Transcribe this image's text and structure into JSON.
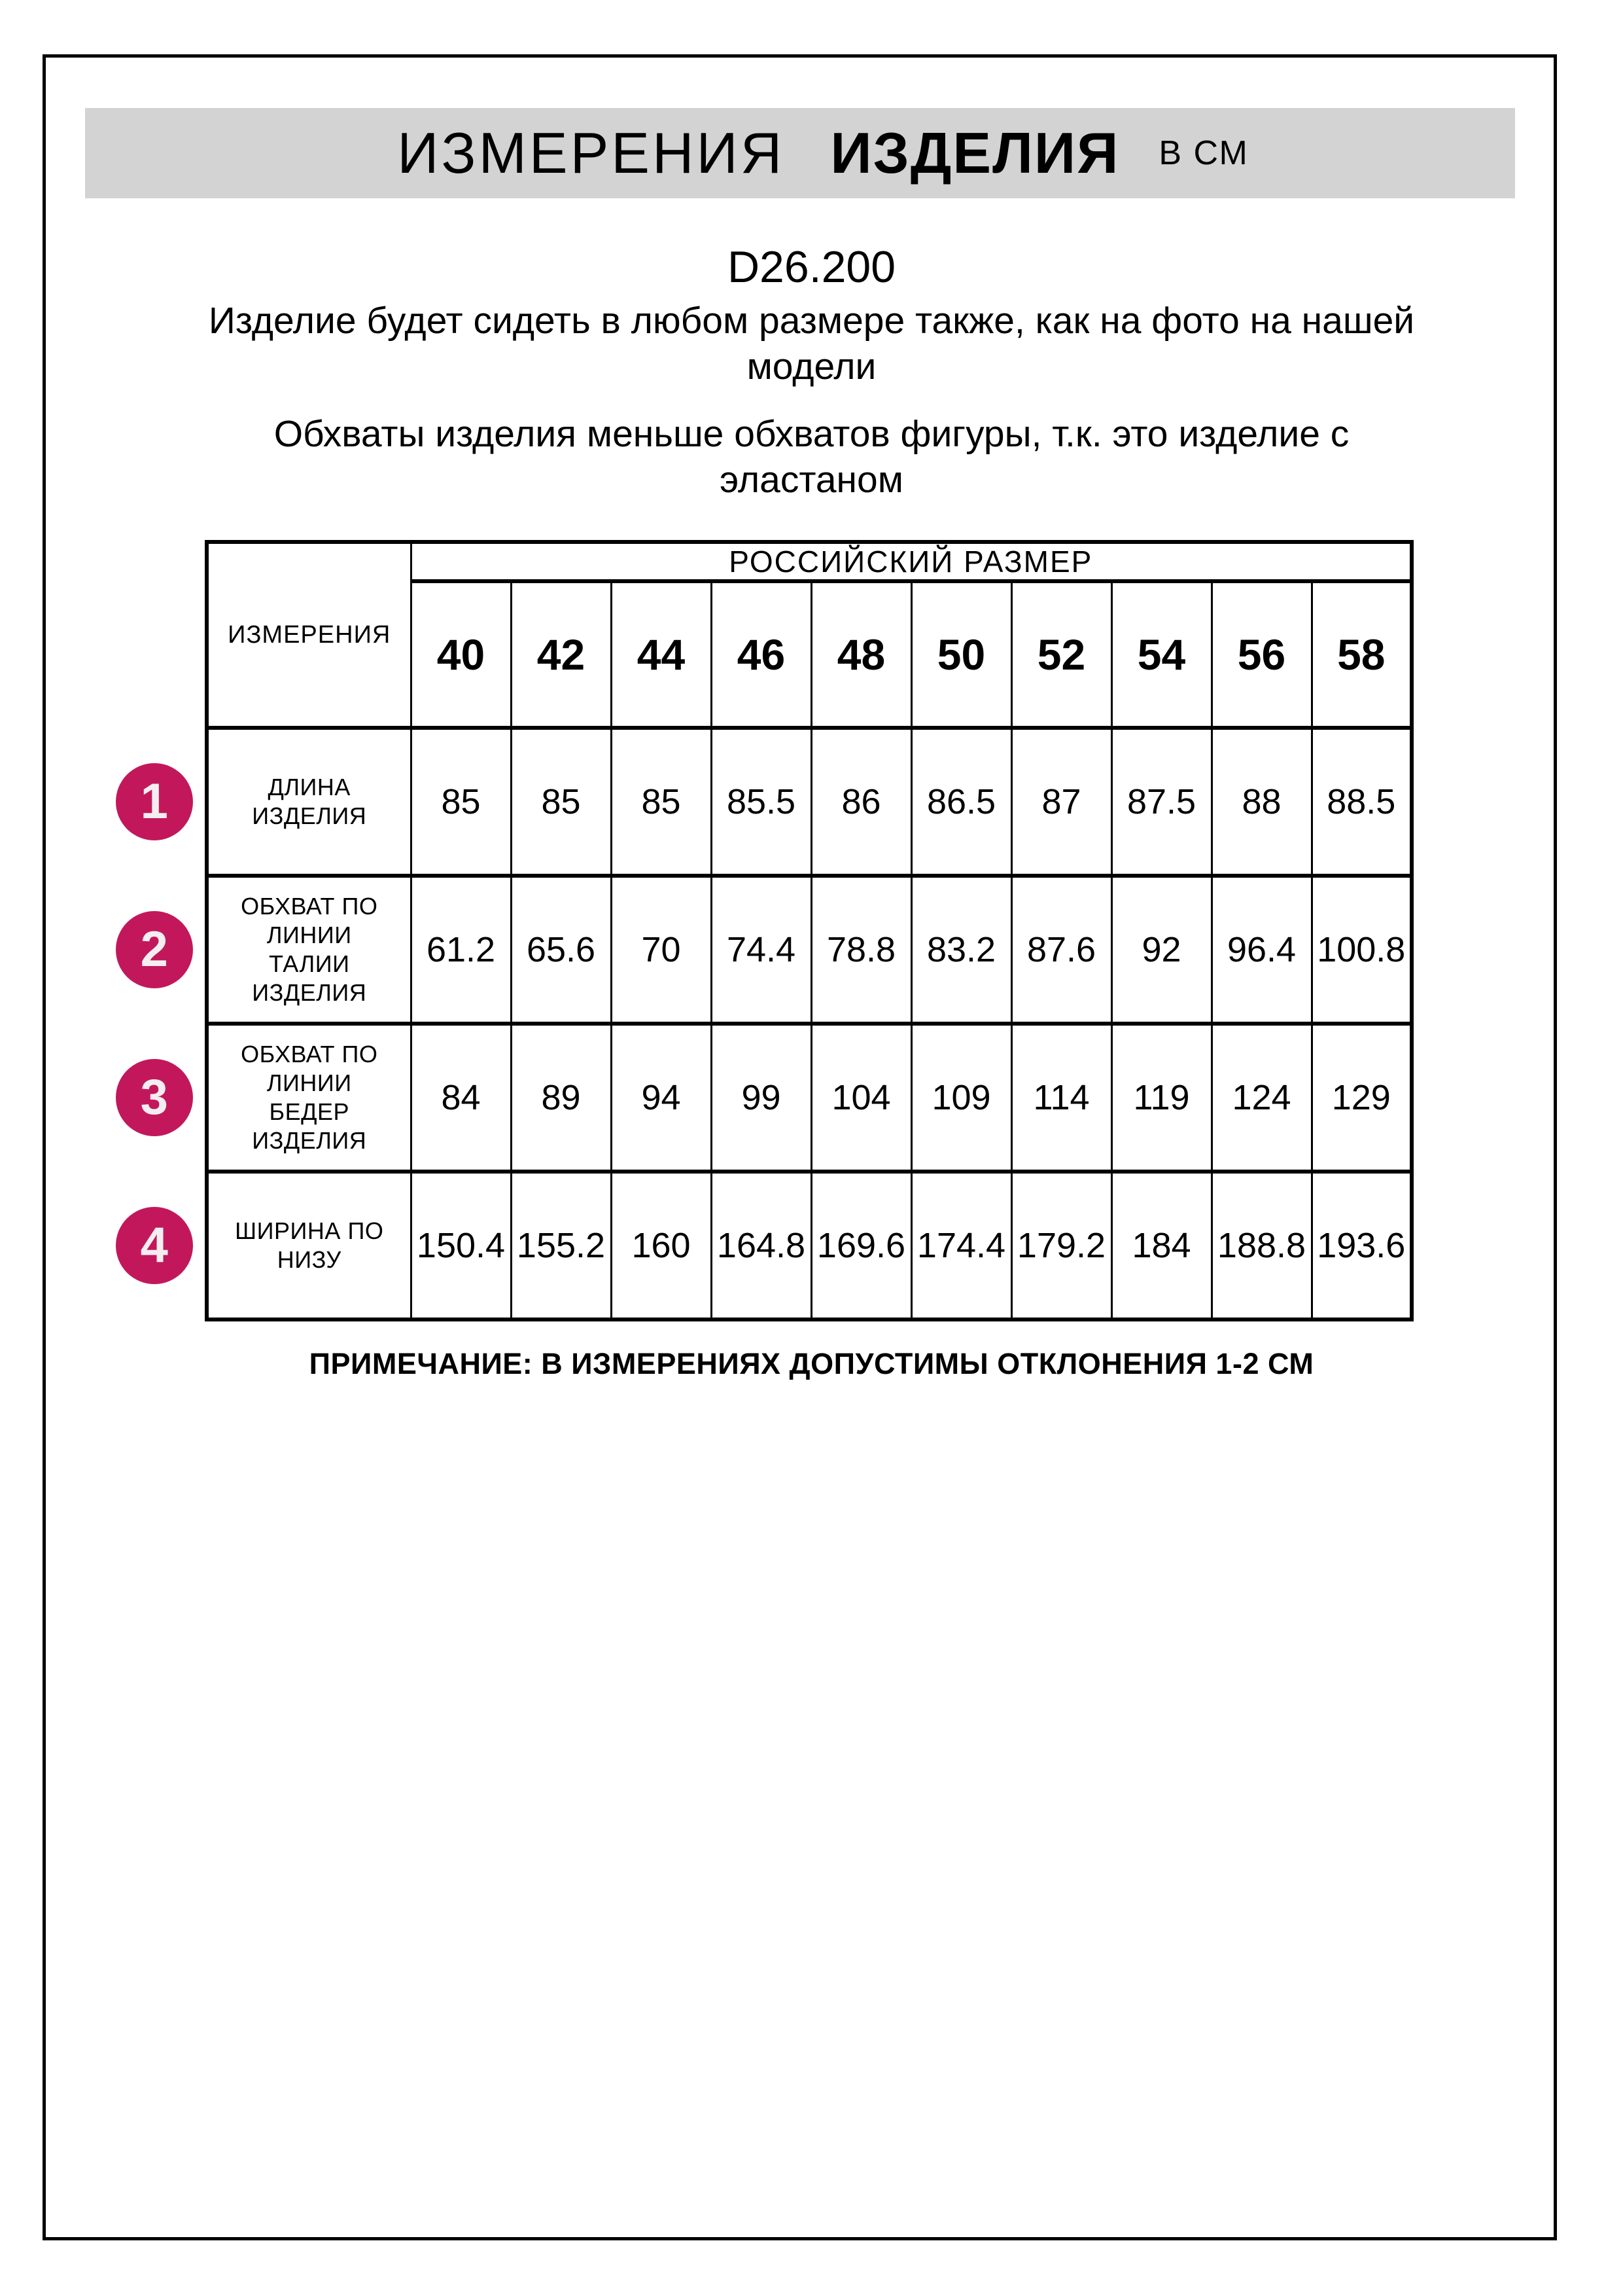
{
  "header": {
    "title_word1": "ИЗМЕРЕНИЯ",
    "title_word2": "ИЗДЕЛИЯ",
    "units": "В СМ"
  },
  "article_number": "D26.200",
  "intro": {
    "paragraph1": "Изделие будет сидеть в любом размере также, как на фото на нашей модели",
    "paragraph2": "Обхваты изделия меньше обхватов фигуры, т.к. это изделие с эластаном"
  },
  "table": {
    "corner_label": "ИЗМЕРЕНИЯ",
    "group_header": "РОССИЙСКИЙ РАЗМЕР",
    "sizes": [
      "40",
      "42",
      "44",
      "46",
      "48",
      "50",
      "52",
      "54",
      "56",
      "58"
    ],
    "rows": [
      {
        "num": "1",
        "label": "ДЛИНА ИЗДЕЛИЯ",
        "values": [
          "85",
          "85",
          "85",
          "85.5",
          "86",
          "86.5",
          "87",
          "87.5",
          "88",
          "88.5"
        ]
      },
      {
        "num": "2",
        "label": "ОБХВАТ ПО ЛИНИИ ТАЛИИ ИЗДЕЛИЯ",
        "values": [
          "61.2",
          "65.6",
          "70",
          "74.4",
          "78.8",
          "83.2",
          "87.6",
          "92",
          "96.4",
          "100.8"
        ]
      },
      {
        "num": "3",
        "label": "ОБХВАТ ПО ЛИНИИ БЕДЕР ИЗДЕЛИЯ",
        "values": [
          "84",
          "89",
          "94",
          "99",
          "104",
          "109",
          "114",
          "119",
          "124",
          "129"
        ]
      },
      {
        "num": "4",
        "label": "ШИРИНА ПО НИЗУ",
        "values": [
          "150.4",
          "155.2",
          "160",
          "164.8",
          "169.6",
          "174.4",
          "179.2",
          "184",
          "188.8",
          "193.6"
        ]
      }
    ]
  },
  "note": "ПРИМЕЧАНИЕ: В ИЗМЕРЕНИЯХ ДОПУСТИМЫ ОТКЛОНЕНИЯ 1-2 СМ",
  "colors": {
    "badge": "#c2185b",
    "header_bg": "#d3d3d3",
    "border": "#000000"
  }
}
